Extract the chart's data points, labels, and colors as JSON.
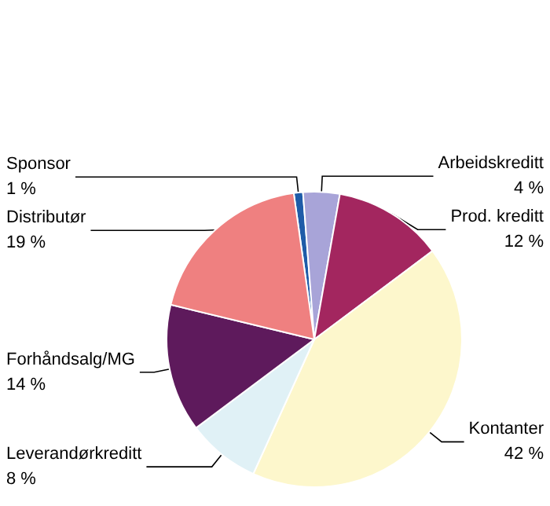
{
  "chart_data": {
    "type": "pie",
    "categories": [
      "Sponsor",
      "Arbeidskreditt",
      "Prod. kreditt",
      "Kontanter",
      "Leverandørkreditt",
      "Forhåndsalg/MG",
      "Distributør"
    ],
    "values": [
      1,
      4,
      12,
      42,
      8,
      14,
      19
    ],
    "value_labels": [
      "1 %",
      "4 %",
      "12 %",
      "42 %",
      "8 %",
      "14 %",
      "19 %"
    ],
    "colors": [
      "#1f5ca8",
      "#a8a4d8",
      "#a3265f",
      "#fdf7cc",
      "#e0f1f6",
      "#5e1a5c",
      "#ef8080"
    ],
    "legend": false
  }
}
